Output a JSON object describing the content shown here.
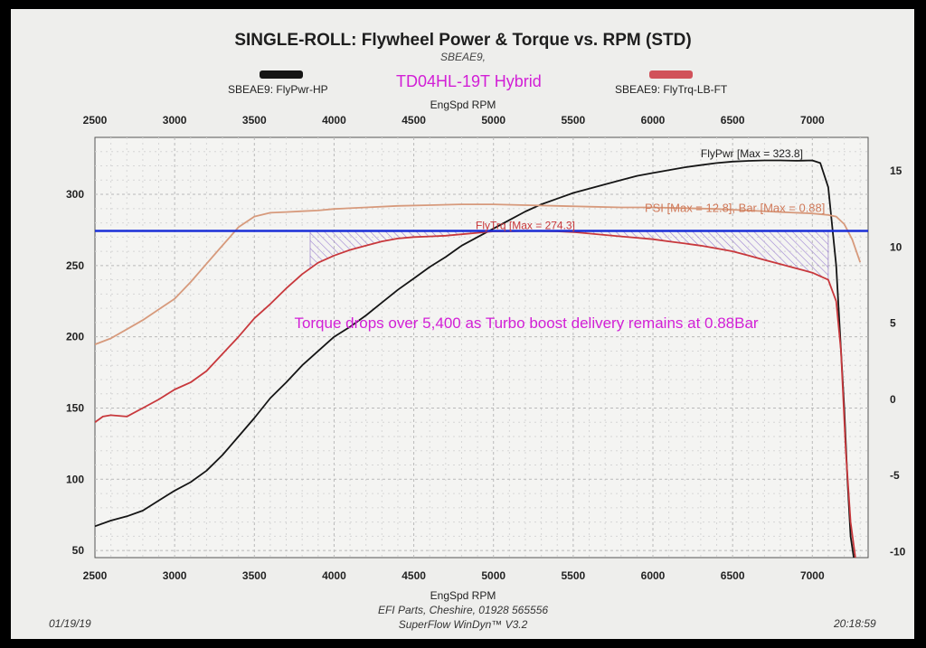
{
  "header": {
    "title": "SINGLE-ROLL: Flywheel Power & Torque vs. RPM (STD)",
    "subtitle": "SBEAE9,",
    "annotation_main": "TD04HL-19T Hybrid",
    "legend_power": "SBEAE9: FlyPwr-HP",
    "legend_torque": "SBEAE9: FlyTrq-LB-FT"
  },
  "footer": {
    "line1": "EFI Parts, Cheshire, 01928 565556",
    "line2": "SuperFlow WinDyn™ V3.2",
    "date": "01/19/19",
    "time": "20:18:59"
  },
  "colors": {
    "power": "#151515",
    "torque": "#c8383c",
    "boost": "#d79a7c",
    "reference_line": "#1a2ed8",
    "annotation": "#d21fd6",
    "hatch": "#9b7fd0"
  },
  "chart_data": {
    "type": "line",
    "xlabel": "EngSpd RPM",
    "x_ticks": [
      2500,
      3000,
      3500,
      4000,
      4500,
      5000,
      5500,
      6000,
      6500,
      7000
    ],
    "xlim": [
      2500,
      7350
    ],
    "left_y_ticks": [
      50,
      100,
      150,
      200,
      250,
      300
    ],
    "ylim_left": [
      45,
      340
    ],
    "right_y_ticks": [
      -10,
      -5,
      0,
      5,
      10,
      15
    ],
    "ylim_right": [
      -10.4,
      17.2
    ],
    "grid": true,
    "series": [
      {
        "name": "SBEAE9: FlyPwr-HP",
        "axis": "left",
        "color_key": "power",
        "x": [
          2500,
          2600,
          2700,
          2800,
          2900,
          3000,
          3100,
          3200,
          3300,
          3400,
          3500,
          3600,
          3700,
          3800,
          3900,
          4000,
          4100,
          4200,
          4300,
          4400,
          4500,
          4600,
          4700,
          4800,
          4900,
          5000,
          5100,
          5200,
          5300,
          5400,
          5500,
          5600,
          5700,
          5800,
          5900,
          6000,
          6100,
          6200,
          6300,
          6400,
          6500,
          6600,
          6700,
          6800,
          6900,
          7000,
          7050,
          7100,
          7150,
          7200,
          7220,
          7240,
          7260
        ],
        "y": [
          67,
          71,
          74,
          78,
          85,
          92,
          98,
          106,
          117,
          130,
          143,
          157,
          168,
          180,
          190,
          200,
          207,
          215,
          224,
          233,
          241,
          249,
          256,
          264,
          270,
          276,
          282,
          288,
          293,
          297,
          301,
          304,
          307,
          310,
          313,
          315,
          317,
          319,
          320.5,
          322,
          323,
          323.5,
          323.8,
          323.8,
          323.6,
          323.8,
          322,
          305,
          250,
          150,
          100,
          60,
          45
        ]
      },
      {
        "name": "SBEAE9: FlyTrq-LB-FT",
        "axis": "left",
        "color_key": "torque",
        "label": "FlyTrq [Max = 274.3]",
        "x": [
          2500,
          2550,
          2600,
          2700,
          2800,
          2900,
          3000,
          3100,
          3200,
          3300,
          3400,
          3500,
          3600,
          3700,
          3800,
          3900,
          4000,
          4100,
          4200,
          4300,
          4400,
          4500,
          4600,
          4700,
          4800,
          4900,
          5000,
          5100,
          5200,
          5300,
          5400,
          5500,
          5600,
          5700,
          5800,
          5900,
          6000,
          6100,
          6200,
          6300,
          6400,
          6500,
          6600,
          6700,
          6800,
          6900,
          7000,
          7100,
          7150,
          7180,
          7210,
          7240,
          7270
        ],
        "y": [
          140,
          144,
          145,
          144,
          150,
          156,
          163,
          168,
          176,
          188,
          200,
          213,
          223,
          234,
          244,
          252,
          257,
          261,
          264,
          267,
          269,
          270,
          270.5,
          271,
          272,
          273,
          274,
          274,
          274.3,
          274.2,
          274,
          273.5,
          272.5,
          271.5,
          270.5,
          269.5,
          268.5,
          267,
          265.5,
          264,
          262,
          260,
          257,
          254,
          251,
          248,
          245,
          240,
          225,
          190,
          120,
          70,
          45
        ]
      },
      {
        "name": "PSI",
        "axis": "right",
        "color_key": "boost",
        "label": "PSI [Max = 12.8], Bar [Max = 0.88]",
        "x": [
          2500,
          2600,
          2700,
          2800,
          2900,
          3000,
          3100,
          3200,
          3300,
          3400,
          3500,
          3600,
          3700,
          3800,
          3900,
          4000,
          4200,
          4400,
          4600,
          4800,
          5000,
          5200,
          5400,
          5600,
          5800,
          6000,
          6200,
          6400,
          6600,
          6800,
          7000,
          7100,
          7150,
          7200,
          7250,
          7300
        ],
        "y": [
          3.6,
          4.0,
          4.6,
          5.2,
          5.9,
          6.6,
          7.7,
          8.9,
          10.1,
          11.3,
          12.0,
          12.25,
          12.3,
          12.35,
          12.4,
          12.5,
          12.6,
          12.7,
          12.75,
          12.8,
          12.8,
          12.75,
          12.7,
          12.65,
          12.6,
          12.6,
          12.55,
          12.5,
          12.4,
          12.3,
          12.2,
          12.1,
          12.0,
          11.5,
          10.5,
          9.0
        ]
      }
    ],
    "annotations": {
      "power_max_label": "FlyPwr [Max = 323.8]",
      "torque_max_label": "FlyTrq [Max = 274.3]",
      "boost_label": "PSI [Max = 12.8], Bar [Max = 0.88]",
      "observation": "Torque drops over 5,400 as Turbo boost delivery remains at 0.88Bar",
      "reference_line_y": 274.3,
      "hatched_region_x": [
        3850,
        7100
      ]
    }
  }
}
